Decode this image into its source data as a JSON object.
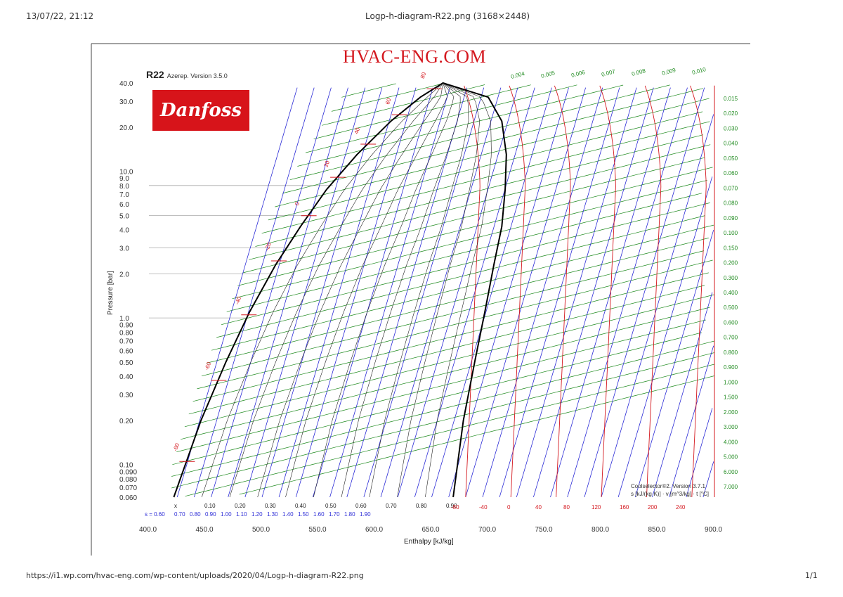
{
  "page_header": {
    "timestamp": "13/07/22, 21:12",
    "title": "Logp-h-diagram-R22.png (3168×2448)"
  },
  "page_footer": {
    "url": "https://i1.wp.com/hvac-eng.com/wp-content/uploads/2020/04/Logp-h-diagram-R22.png",
    "page_count": "1/1"
  },
  "brand": "HVAC-ENG.COM",
  "logo": "Danfoss",
  "refrigerant": "R22",
  "version_top": "Azerep. Version 3.5.0",
  "legend": {
    "software": "Coolselector®2. Version 3.7.1",
    "units": "s [kJ/(kg·K)] · v [m^3/kg] · t [°C]"
  },
  "colors": {
    "isotherm": "#d4181f",
    "isentrope": "#2b2bd6",
    "isochore": "#1e8a1e",
    "saturation": "#000000"
  },
  "chart_data": {
    "type": "line",
    "title": "R22",
    "xlabel": "Enthalpy [kJ/kg]",
    "ylabel": "Pressure [bar]",
    "xlim": [
      400,
      900
    ],
    "ylim": [
      0.06,
      40
    ],
    "yscale": "log",
    "x_ticks": [
      "400.0",
      "450.0",
      "500.0",
      "550.0",
      "600.0",
      "650.0",
      "700.0",
      "750.0",
      "800.0",
      "850.0",
      "900.0"
    ],
    "y_ticks": [
      {
        "value": 40,
        "label": "40.0"
      },
      {
        "value": 30,
        "label": "30.0"
      },
      {
        "value": 20,
        "label": "20.0"
      },
      {
        "value": 10,
        "label": "10.0"
      },
      {
        "value": 9,
        "label": "9.0"
      },
      {
        "value": 8,
        "label": "8.0"
      },
      {
        "value": 7,
        "label": "7.0"
      },
      {
        "value": 6,
        "label": "6.0"
      },
      {
        "value": 5,
        "label": "5.0"
      },
      {
        "value": 4,
        "label": "4.0"
      },
      {
        "value": 3,
        "label": "3.0"
      },
      {
        "value": 2,
        "label": "2.0"
      },
      {
        "value": 1,
        "label": "1.0"
      },
      {
        "value": 0.9,
        "label": "0.90"
      },
      {
        "value": 0.8,
        "label": "0.80"
      },
      {
        "value": 0.7,
        "label": "0.70"
      },
      {
        "value": 0.6,
        "label": "0.60"
      },
      {
        "value": 0.5,
        "label": "0.50"
      },
      {
        "value": 0.4,
        "label": "0.40"
      },
      {
        "value": 0.3,
        "label": "0.30"
      },
      {
        "value": 0.2,
        "label": "0.20"
      },
      {
        "value": 0.1,
        "label": "0.10"
      },
      {
        "value": 0.09,
        "label": "0.090"
      },
      {
        "value": 0.08,
        "label": "0.080"
      },
      {
        "value": 0.07,
        "label": "0.070"
      },
      {
        "value": 0.06,
        "label": "0.060"
      }
    ],
    "quality_labels": [
      "x",
      "0.10",
      "0.20",
      "0.30",
      "0.40",
      "0.50",
      "0.60",
      "0.70",
      "0.80",
      "0.90"
    ],
    "entropy_bottom_labels": [
      "s = 0.60",
      "0.70",
      "0.80",
      "0.90",
      "1.00",
      "1.10",
      "1.20",
      "1.30",
      "1.40",
      "1.50",
      "1.60",
      "1.70",
      "1.80",
      "1.90"
    ],
    "temperature_bottom_labels": [
      "-80",
      "-40",
      "0",
      "40",
      "80",
      "120",
      "160",
      "200",
      "240"
    ],
    "volume_right_labels": [
      "0.015",
      "0.020",
      "0.030",
      "0.040",
      "0.050",
      "0.060",
      "0.070",
      "0.080",
      "0.090",
      "0.100",
      "0.150",
      "0.200",
      "0.300",
      "0.400",
      "0.500",
      "0.600",
      "0.700",
      "0.800",
      "0.900",
      "1.000",
      "1.500",
      "2.000",
      "3.000",
      "4.000",
      "5.000",
      "6.000",
      "7.000"
    ],
    "volume_top_labels": [
      "0.004",
      "0.005",
      "0.006",
      "0.007",
      "0.008",
      "0.009",
      "0.010"
    ],
    "saturation_temperature_labels": [
      {
        "t": "-80",
        "p": 0.105
      },
      {
        "t": "-60",
        "p": 0.375
      },
      {
        "t": "-40",
        "p": 1.05
      },
      {
        "t": "-20",
        "p": 2.45
      },
      {
        "t": "0",
        "p": 4.98
      },
      {
        "t": "20",
        "p": 9.1
      },
      {
        "t": "40",
        "p": 15.3
      },
      {
        "t": "60",
        "p": 24.3
      },
      {
        "t": "80",
        "p": 36.5
      }
    ],
    "saturated_liquid": {
      "h": [
        422,
        446,
        468,
        489,
        512,
        534,
        557,
        584,
        614,
        640,
        660
      ],
      "p": [
        0.06,
        0.2,
        0.5,
        1.1,
        2.3,
        4.2,
        7.5,
        13,
        22,
        32,
        40
      ]
    },
    "saturated_vapor": {
      "h": [
        669,
        678,
        688,
        697,
        705,
        712,
        715,
        716,
        712,
        700,
        660
      ],
      "p": [
        0.06,
        0.2,
        0.5,
        1.1,
        2.3,
        4.2,
        7.5,
        13,
        22,
        32,
        40
      ]
    }
  }
}
